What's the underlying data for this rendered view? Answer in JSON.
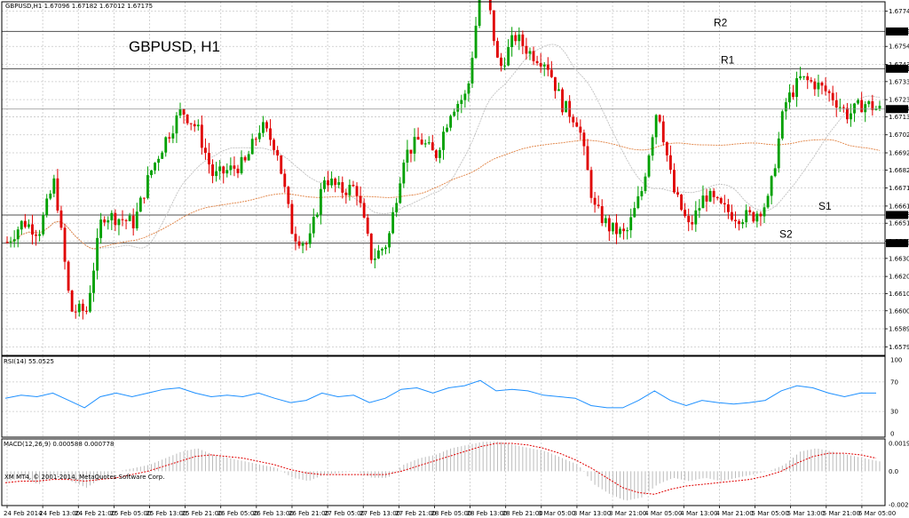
{
  "header": {
    "symbol_info": "GBPUSD,H1  1.67096 1.67182 1.67012 1.67175",
    "title": "GBPUSD, H1",
    "copyright": "XM MT4, © 2001-2014, MetaQuotes Software Corp."
  },
  "colors": {
    "bull": "#00a000",
    "bear": "#e00000",
    "grid": "#c8c8c8",
    "rsi": "#1e90ff",
    "ma_fast": "#c0c0c0",
    "ma_slow": "#e08040",
    "macd_hist": "#b4b4b4",
    "macd_signal": "#e00000"
  },
  "chart_data": {
    "type": "candlestick",
    "title": "GBPUSD, H1",
    "price_axis": {
      "range": [
        1.6574,
        1.678
      ],
      "ticks": [
        "1.67745",
        "1.67540",
        "1.67435",
        "1.67335",
        "1.67230",
        "1.67130",
        "1.67025",
        "1.66920",
        "1.66820",
        "1.66715",
        "1.66610",
        "1.66510",
        "1.66405",
        "1.66305",
        "1.66200",
        "1.66100",
        "1.66000",
        "1.65895",
        "1.65790"
      ],
      "current_price": "1.67175"
    },
    "levels": [
      {
        "name": "R2",
        "value": 1.67627,
        "label": "1.67627"
      },
      {
        "name": "R1",
        "value": 1.6741,
        "label": "1.67410"
      },
      {
        "name": "S1",
        "value": 1.66558,
        "label": "1.66558"
      },
      {
        "name": "S2",
        "value": 1.66394,
        "label": "1.66394"
      }
    ],
    "time_labels": [
      "24 Feb 2014",
      "24 Feb 13:00",
      "24 Feb 21:00",
      "25 Feb 05:00",
      "25 Feb 13:00",
      "25 Feb 21:00",
      "26 Feb 05:00",
      "26 Feb 13:00",
      "26 Feb 21:00",
      "27 Feb 05:00",
      "27 Feb 13:00",
      "27 Feb 21:00",
      "28 Feb 05:00",
      "28 Feb 13:00",
      "28 Feb 21:00",
      "3 Mar 05:00",
      "3 Mar 13:00",
      "3 Mar 21:00",
      "4 Mar 05:00",
      "4 Mar 13:00",
      "4 Mar 21:00",
      "5 Mar 05:00",
      "5 Mar 13:00",
      "5 Mar 21:00",
      "6 Mar 05:00"
    ],
    "price_path": [
      1.664,
      1.6652,
      1.6646,
      1.6676,
      1.66,
      1.66,
      1.6656,
      1.6654,
      1.6651,
      1.668,
      1.67,
      1.6717,
      1.6706,
      1.6678,
      1.6682,
      1.6686,
      1.6708,
      1.6695,
      1.6645,
      1.6638,
      1.6678,
      1.667,
      1.6672,
      1.663,
      1.664,
      1.669,
      1.67,
      1.669,
      1.6718,
      1.6726,
      1.68,
      1.674,
      1.676,
      1.675,
      1.6745,
      1.672,
      1.671,
      1.666,
      1.6648,
      1.6644,
      1.667,
      1.672,
      1.667,
      1.6648,
      1.6668,
      1.666,
      1.6655,
      1.6655,
      1.6664,
      1.672,
      1.6735,
      1.6732,
      1.6725,
      1.6714,
      1.6721,
      1.6717
    ],
    "rsi": {
      "label": "RSI(14) 55.0525",
      "value": 55.0525,
      "range": [
        0,
        100
      ],
      "ticks": [
        "100",
        "70",
        "30",
        "0"
      ],
      "path": [
        48,
        52,
        50,
        55,
        45,
        35,
        50,
        55,
        50,
        55,
        60,
        62,
        55,
        50,
        52,
        50,
        55,
        48,
        42,
        45,
        55,
        50,
        52,
        42,
        48,
        60,
        62,
        55,
        62,
        65,
        72,
        58,
        60,
        58,
        52,
        50,
        48,
        38,
        35,
        35,
        45,
        58,
        45,
        38,
        45,
        42,
        40,
        42,
        45,
        58,
        65,
        62,
        55,
        50,
        55,
        55
      ]
    },
    "macd": {
      "label": "MACD(12,26,9) 0.000588 0.000778",
      "ticks": [
        "0.00197",
        "0.0",
        "-0.00209"
      ],
      "range": [
        -0.00209,
        0.00197
      ],
      "hist": [
        -0.0006,
        -0.0004,
        -0.0008,
        -0.0002,
        -0.0006,
        -0.001,
        -0.0004,
        0.0,
        0.0002,
        0.0004,
        0.0008,
        0.0012,
        0.0014,
        0.001,
        0.0008,
        0.0006,
        0.0004,
        0.0002,
        -0.0004,
        -0.0006,
        -0.0002,
        -0.0001,
        0.0,
        -0.0004,
        -0.0004,
        0.0004,
        0.0008,
        0.001,
        0.0014,
        0.0016,
        0.0018,
        0.0018,
        0.0016,
        0.0014,
        0.0012,
        0.0008,
        0.0004,
        -0.0008,
        -0.0014,
        -0.0018,
        -0.0016,
        -0.0008,
        -0.0004,
        -0.0006,
        -0.0004,
        -0.0006,
        -0.0004,
        -0.0002,
        0.0,
        0.0004,
        0.0012,
        0.0014,
        0.0012,
        0.001,
        0.0008,
        0.0006
      ],
      "signal": [
        -0.0007,
        -0.0006,
        -0.0006,
        -0.0005,
        -0.0005,
        -0.0006,
        -0.0005,
        -0.0004,
        -0.0002,
        0.0,
        0.0003,
        0.0006,
        0.0009,
        0.001,
        0.0009,
        0.0008,
        0.0006,
        0.0004,
        0.0001,
        -0.0001,
        -0.0002,
        -0.0002,
        -0.0002,
        -0.0002,
        -0.0002,
        0.0,
        0.0003,
        0.0006,
        0.0009,
        0.0012,
        0.0015,
        0.0017,
        0.0017,
        0.0016,
        0.0014,
        0.0011,
        0.0007,
        0.0002,
        -0.0004,
        -0.001,
        -0.0013,
        -0.0014,
        -0.0011,
        -0.0009,
        -0.0008,
        -0.0007,
        -0.0006,
        -0.0005,
        -0.0003,
        0.0,
        0.0005,
        0.0009,
        0.0011,
        0.0011,
        0.001,
        0.0008
      ]
    }
  }
}
